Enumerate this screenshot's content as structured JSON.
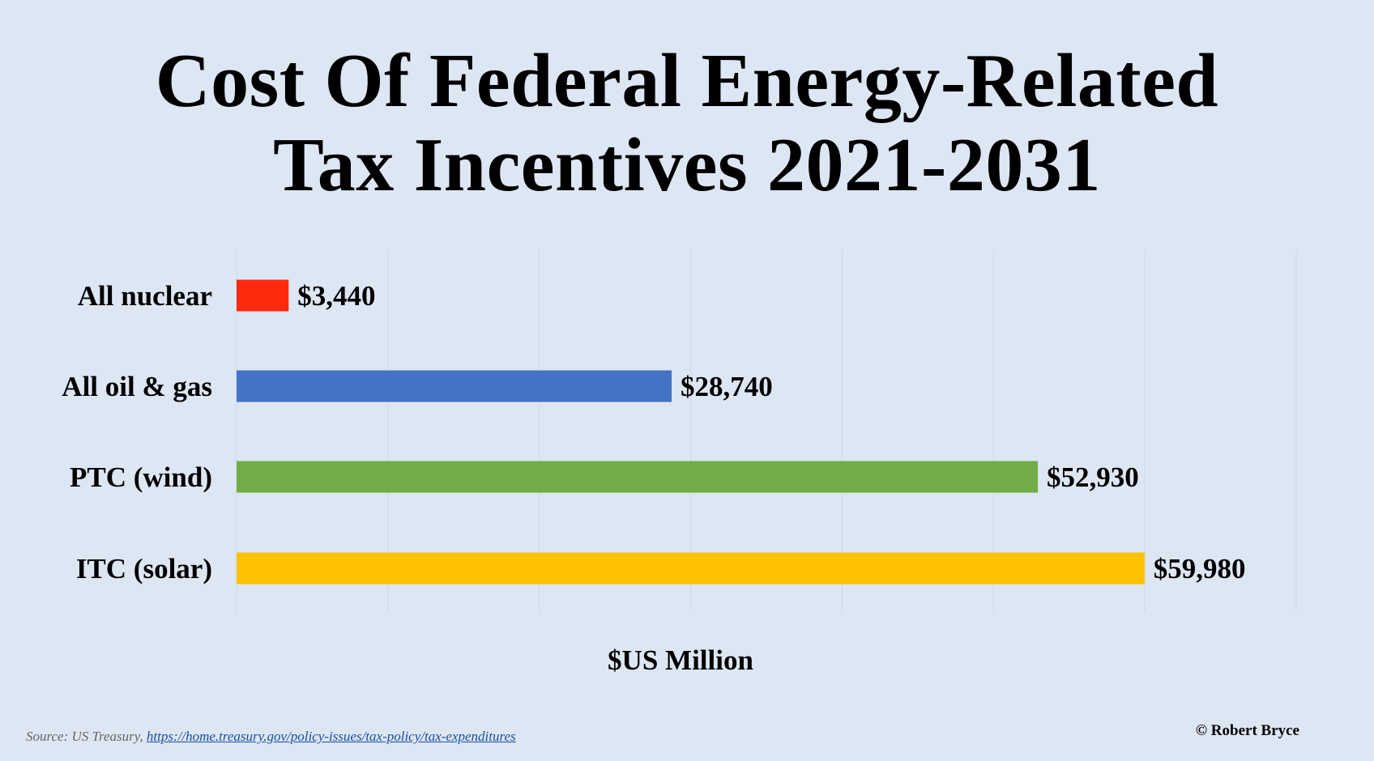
{
  "title": {
    "line1": "Cost Of Federal Energy-Related",
    "line2": "Tax Incentives 2021-2031"
  },
  "source": {
    "prefix": "Source: US Treasury,",
    "link": "https://home.treasury.gov/policy-issues/tax-policy/tax-expenditures"
  },
  "credit": "© Robert Bryce",
  "chart_data": {
    "type": "bar",
    "orientation": "horizontal",
    "title": "Cost Of Federal Energy-Related Tax Incentives 2021-2031",
    "xlabel": "$US Million",
    "ylabel": "",
    "categories": [
      "All nuclear",
      "All oil & gas",
      "PTC (wind)",
      "ITC (solar)"
    ],
    "values": [
      3440,
      28740,
      52930,
      59980
    ],
    "data_labels": [
      "$3,440",
      "$28,740",
      "$52,930",
      "$59,980"
    ],
    "colors": [
      "#ff2a0e",
      "#4472c4",
      "#70ad47",
      "#ffc000"
    ],
    "xlim": [
      0,
      70000
    ],
    "x_gridlines": [
      0,
      10000,
      20000,
      30000,
      40000,
      50000,
      60000,
      70000
    ],
    "x_tick_labels_shown": false,
    "grid": true,
    "legend": "none"
  },
  "colors": {
    "background": "#dde6f3",
    "gridline": "#d0d8e4",
    "text": "#000000"
  }
}
